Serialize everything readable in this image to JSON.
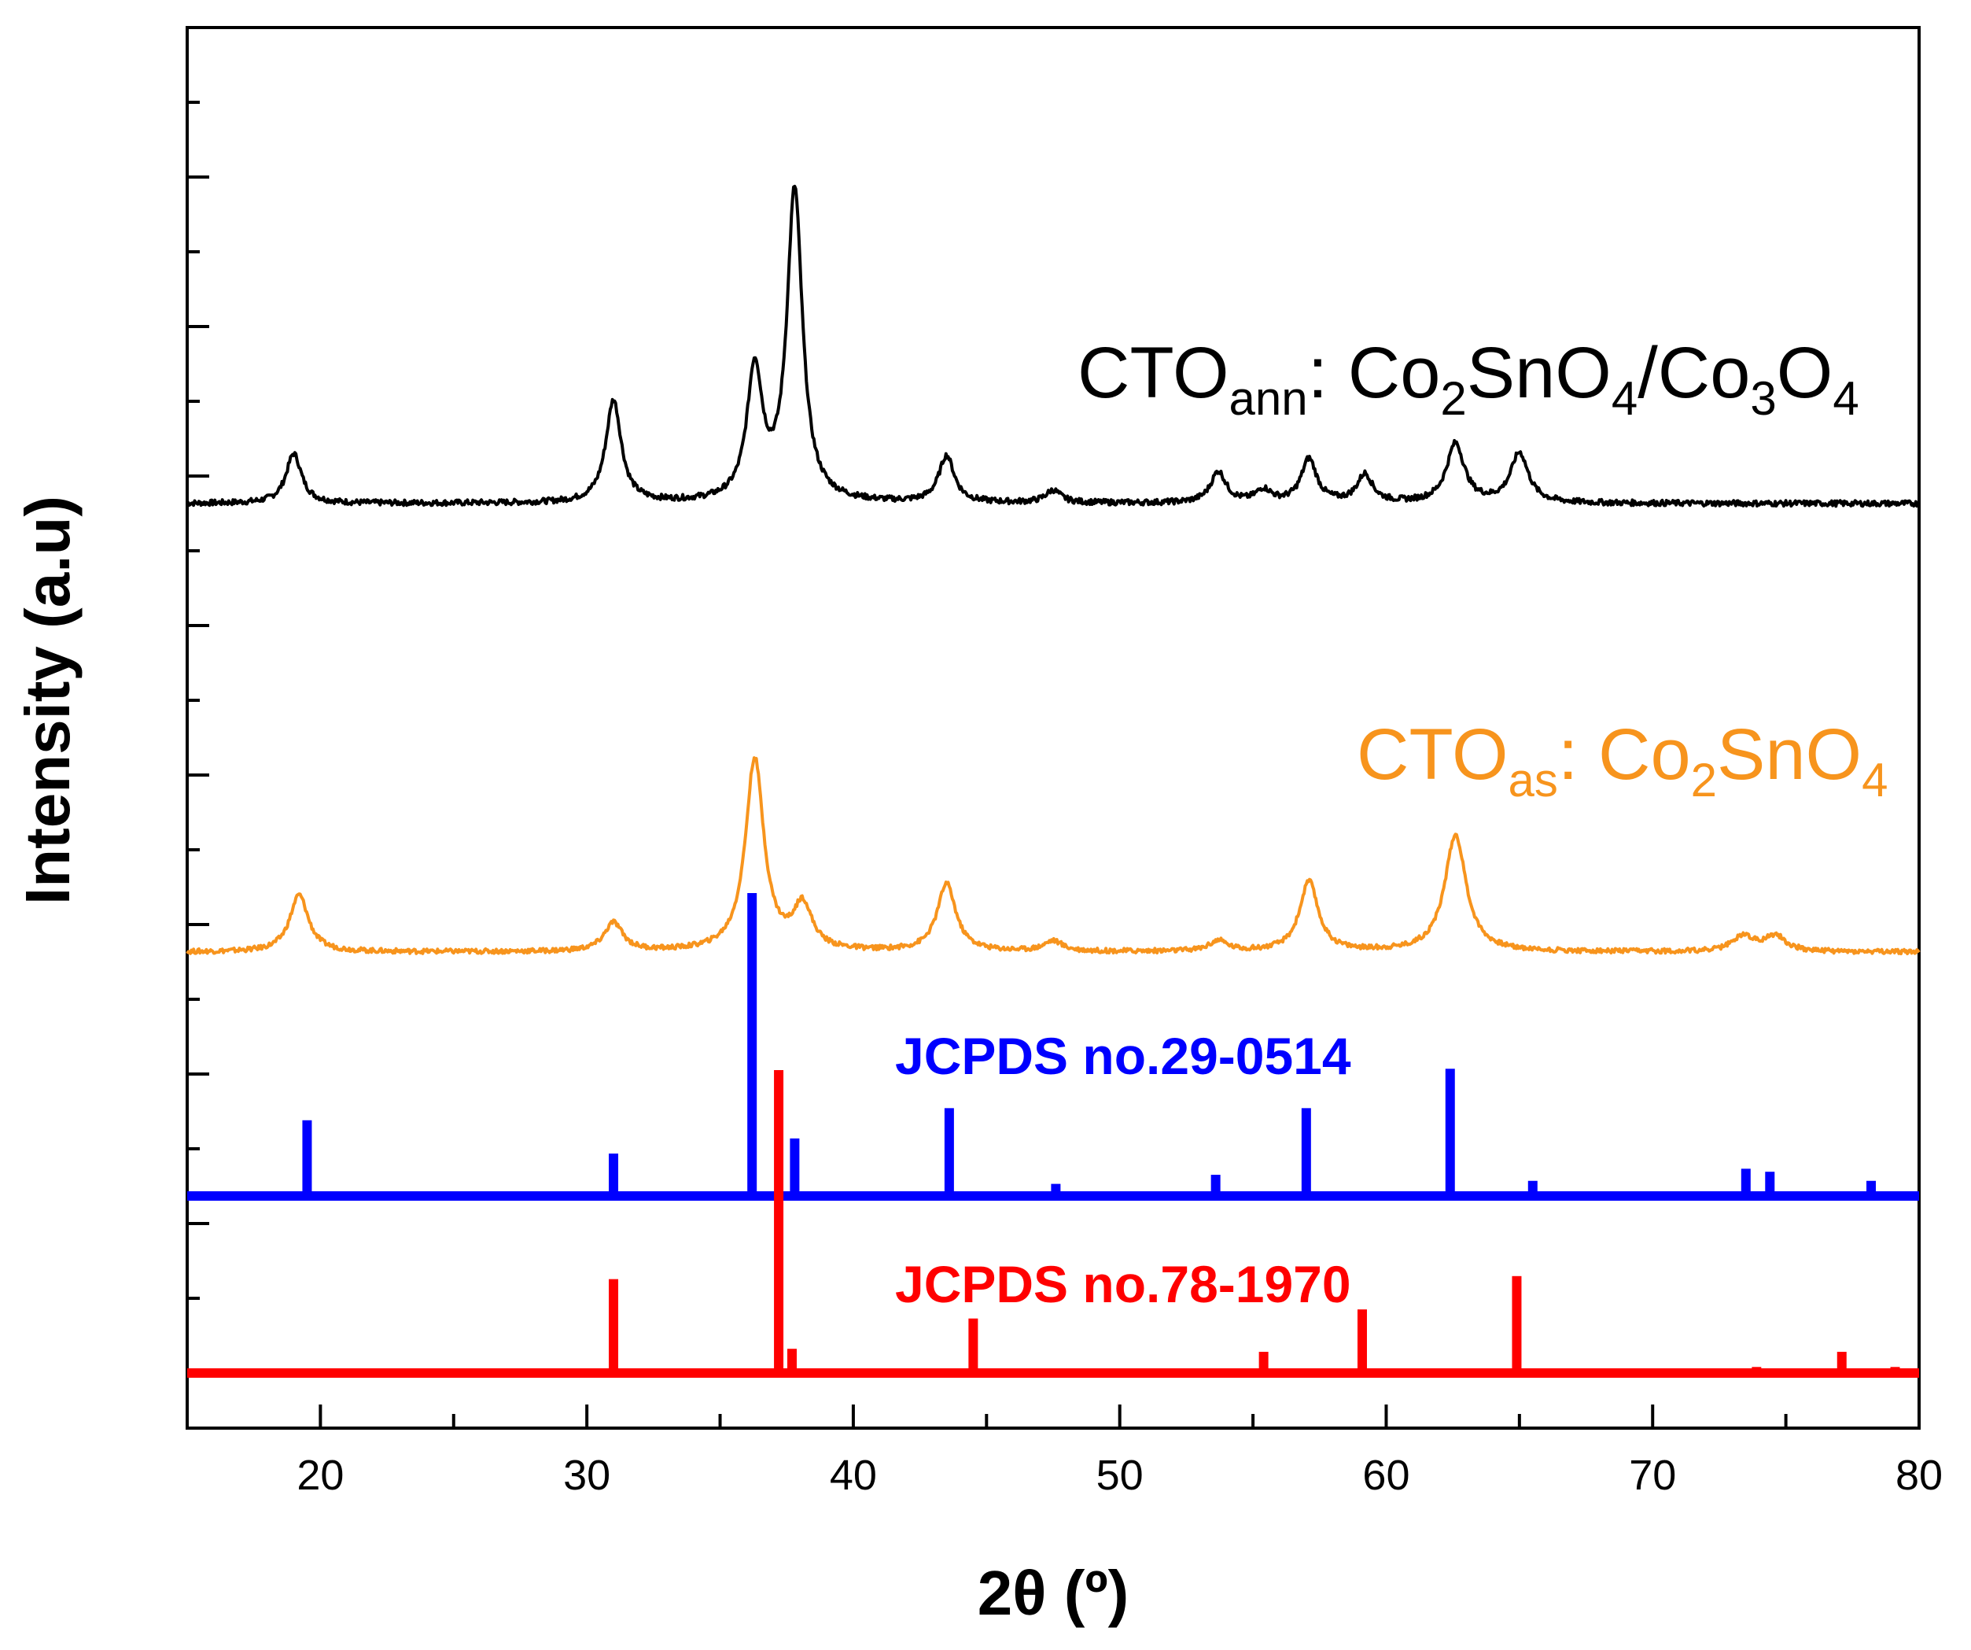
{
  "chart_data": {
    "type": "line",
    "title": "",
    "xlabel": "2θ (º)",
    "ylabel": "Intensity (a.u)",
    "xlim": [
      15,
      80
    ],
    "x_ticks": [
      20,
      30,
      40,
      50,
      60,
      70,
      80
    ],
    "x_tick_labels": [
      "20",
      "30",
      "40",
      "50",
      "60",
      "70",
      "80"
    ],
    "y_ticks_labeled": false,
    "colors": {
      "frame": "#000000",
      "cto_ann": "#000000",
      "cto_as": "#f7941d",
      "jcpds_29_0514": "#0000ff",
      "jcpds_78_1970": "#ff0000"
    },
    "series": [
      {
        "name": "CTO_ann",
        "label": {
          "base": "CTO",
          "sub": "ann",
          "text": ": Co",
          "sub2": "2",
          "text2": "SnO",
          "sub3": "4",
          "text3": "/Co",
          "sub4": "3",
          "text4": "O",
          "sub5": "4"
        },
        "kind": "pattern",
        "baseline": 0,
        "peaks": [
          [
            19.0,
            0.16
          ],
          [
            31.0,
            0.33
          ],
          [
            36.3,
            0.42
          ],
          [
            37.8,
            1.0
          ],
          [
            43.5,
            0.15
          ],
          [
            47.5,
            0.04
          ],
          [
            53.7,
            0.1
          ],
          [
            55.4,
            0.04
          ],
          [
            57.1,
            0.14
          ],
          [
            59.2,
            0.09
          ],
          [
            62.6,
            0.19
          ],
          [
            65.0,
            0.16
          ]
        ]
      },
      {
        "name": "CTO_as",
        "label": {
          "base": "CTO",
          "sub": "as",
          "text": ": Co",
          "sub2": "2",
          "text2": "SnO",
          "sub3": "4"
        },
        "kind": "pattern",
        "baseline": 0,
        "peaks": [
          [
            19.2,
            0.22
          ],
          [
            31.0,
            0.11
          ],
          [
            36.3,
            0.74
          ],
          [
            38.1,
            0.17
          ],
          [
            43.5,
            0.26
          ],
          [
            47.5,
            0.04
          ],
          [
            53.7,
            0.04
          ],
          [
            57.1,
            0.27
          ],
          [
            62.6,
            0.45
          ],
          [
            73.4,
            0.06
          ],
          [
            74.6,
            0.06
          ]
        ]
      },
      {
        "name": "JCPDS no.29-0514",
        "label": {
          "text": "JCPDS no.29-0514"
        },
        "kind": "sticks",
        "sticks": [
          [
            19.5,
            0.25
          ],
          [
            31.0,
            0.14
          ],
          [
            36.2,
            1.0
          ],
          [
            37.8,
            0.19
          ],
          [
            43.6,
            0.29
          ],
          [
            47.6,
            0.04
          ],
          [
            53.6,
            0.07
          ],
          [
            57.0,
            0.29
          ],
          [
            62.4,
            0.42
          ],
          [
            65.5,
            0.05
          ],
          [
            70.5,
            0.01
          ],
          [
            73.5,
            0.09
          ],
          [
            74.4,
            0.08
          ],
          [
            78.2,
            0.05
          ]
        ]
      },
      {
        "name": "JCPDS no.78-1970",
        "label": {
          "text": "JCPDS no.78-1970"
        },
        "kind": "sticks",
        "sticks": [
          [
            31.0,
            0.31
          ],
          [
            37.2,
            1.0
          ],
          [
            37.7,
            0.08
          ],
          [
            44.5,
            0.18
          ],
          [
            55.4,
            0.07
          ],
          [
            59.1,
            0.21
          ],
          [
            64.9,
            0.32
          ],
          [
            73.9,
            0.02
          ],
          [
            77.1,
            0.07
          ],
          [
            79.1,
            0.02
          ]
        ]
      }
    ]
  }
}
